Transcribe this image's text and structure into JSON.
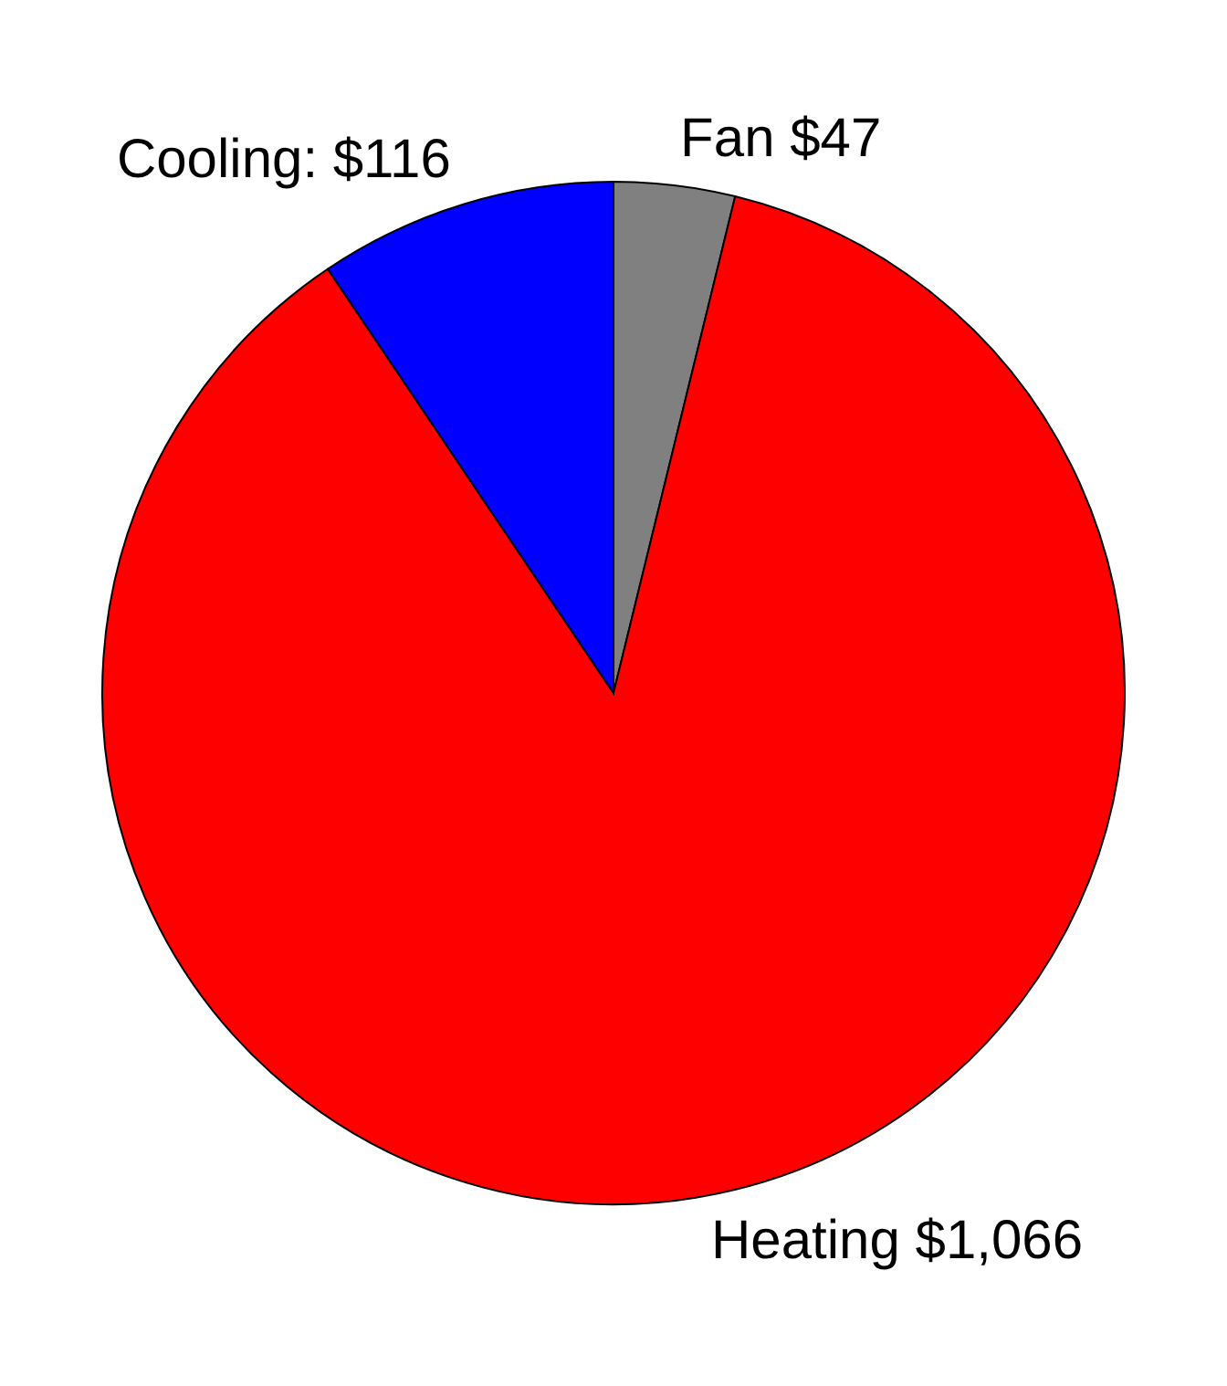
{
  "chart_data": {
    "type": "pie",
    "categories": [
      "Fan $47",
      "Heating $1,066",
      "Cooling: $116"
    ],
    "values": [
      47,
      1066,
      116
    ],
    "colors": [
      "#808080",
      "#ff0000",
      "#0000ff"
    ],
    "legend": false
  }
}
